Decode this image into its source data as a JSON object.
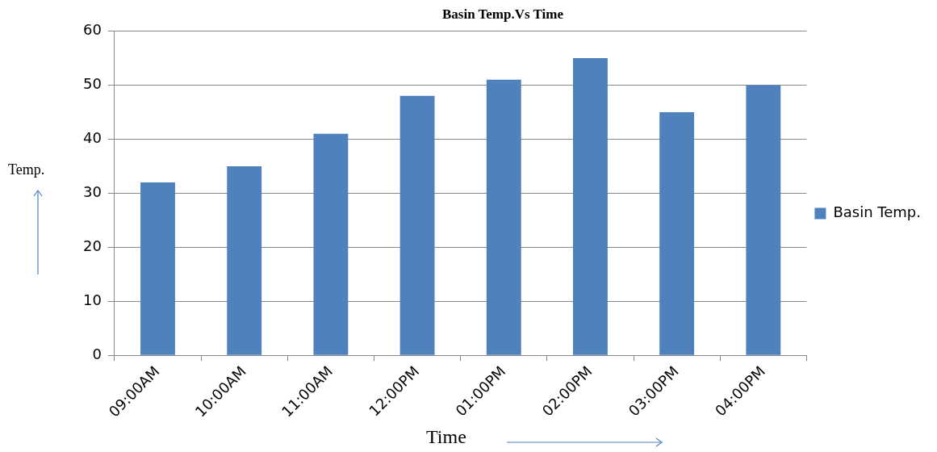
{
  "chart_data": {
    "type": "bar",
    "title": "Basin Temp.Vs Time",
    "xlabel": "Time",
    "ylabel": "Temp.",
    "categories": [
      "09:00AM",
      "10:00AM",
      "11:00AM",
      "12:00PM",
      "01:00PM",
      "02:00PM",
      "03:00PM",
      "04:00PM"
    ],
    "series": [
      {
        "name": "Basin Temp.",
        "color": "#4f81bd",
        "values": [
          32,
          35,
          41,
          48,
          51,
          55,
          45,
          50
        ]
      }
    ],
    "ylim": [
      0,
      60
    ],
    "yticks": [
      0,
      10,
      20,
      30,
      40,
      50,
      60
    ],
    "grid": "y",
    "legend": "right"
  }
}
